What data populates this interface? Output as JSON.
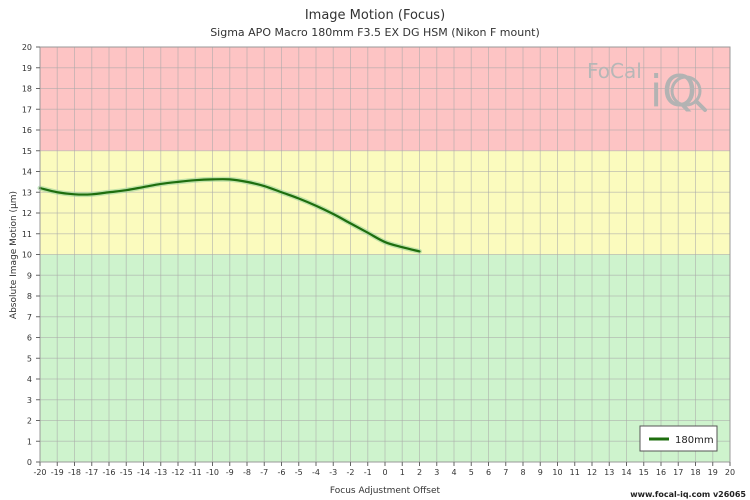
{
  "chart_data": {
    "type": "line",
    "title": "Image Motion (Focus)",
    "subtitle": "Sigma APO Macro 180mm F3.5 EX DG HSM (Nikon F mount)",
    "xlabel": "Focus Adjustment Offset",
    "ylabel": "Absolute Image Motion (µm)",
    "xlim": [
      -20,
      20
    ],
    "ylim": [
      0,
      20
    ],
    "x_ticks": [
      -20,
      -19,
      -18,
      -17,
      -16,
      -15,
      -14,
      -13,
      -12,
      -11,
      -10,
      -9,
      -8,
      -7,
      -6,
      -5,
      -4,
      -3,
      -2,
      -1,
      0,
      1,
      2,
      3,
      4,
      5,
      6,
      7,
      8,
      9,
      10,
      11,
      12,
      13,
      14,
      15,
      16,
      17,
      18,
      19,
      20
    ],
    "y_ticks": [
      0,
      1,
      2,
      3,
      4,
      5,
      6,
      7,
      8,
      9,
      10,
      11,
      12,
      13,
      14,
      15,
      16,
      17,
      18,
      19,
      20
    ],
    "grid": true,
    "zones": [
      {
        "from": 0,
        "to": 10,
        "color": "#cef3cd"
      },
      {
        "from": 10,
        "to": 15,
        "color": "#fbfbbe"
      },
      {
        "from": 15,
        "to": 20,
        "color": "#fdc4c4"
      }
    ],
    "legend_position": "bottom-right",
    "series": [
      {
        "name": "180mm",
        "color": "#1e6e0e",
        "x": [
          -20,
          -19,
          -18,
          -17,
          -16,
          -15,
          -14,
          -13,
          -12,
          -11,
          -10,
          -9,
          -8,
          -7,
          -6,
          -5,
          -4,
          -3,
          -2,
          -1,
          0,
          1,
          2
        ],
        "y": [
          13.2,
          13.0,
          12.9,
          12.9,
          13.0,
          13.1,
          13.25,
          13.4,
          13.5,
          13.58,
          13.62,
          13.62,
          13.5,
          13.3,
          13.0,
          12.7,
          12.35,
          11.95,
          11.5,
          11.05,
          10.6,
          10.35,
          10.15
        ]
      }
    ]
  },
  "logo": {
    "text": "FoCal",
    "mark": "iQ"
  },
  "footer": "www.focal-iq.com  v26065"
}
